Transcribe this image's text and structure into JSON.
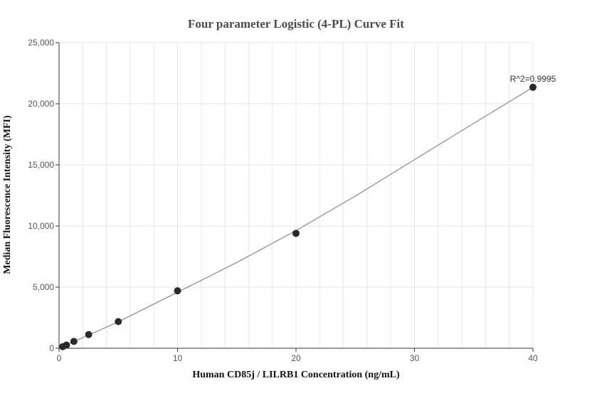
{
  "chart_data": {
    "type": "scatter",
    "title": "Four parameter Logistic (4-PL) Curve Fit",
    "xlabel": "Human CD85j / LILRB1 Concentration (ng/mL)",
    "ylabel": "Median Fluorescence Intensity (MFI)",
    "xlim": [
      0,
      40
    ],
    "ylim": [
      0,
      25000
    ],
    "x_ticks": [
      0,
      10,
      20,
      30,
      40
    ],
    "x_tick_labels": [
      "0",
      "10",
      "20",
      "30",
      "40"
    ],
    "y_ticks": [
      0,
      5000,
      10000,
      15000,
      20000,
      25000
    ],
    "y_tick_labels": [
      "0",
      "5,000",
      "10,000",
      "15,000",
      "20,000",
      "25,000"
    ],
    "grid": true,
    "points": {
      "x": [
        0.3125,
        0.625,
        1.25,
        2.5,
        5,
        10,
        20,
        40
      ],
      "y": [
        130,
        260,
        560,
        1120,
        2180,
        4700,
        9400,
        21350
      ]
    },
    "fit_curve": {
      "x": [
        0,
        5,
        10,
        15,
        20,
        25,
        30,
        35,
        40
      ],
      "y": [
        0,
        2160,
        4580,
        7020,
        9620,
        12450,
        15420,
        18400,
        21350
      ]
    },
    "annotation": "R^2=0.9995",
    "colors": {
      "points": "#2b2b2b",
      "curve": "#888888",
      "grid": "#e6e6ee",
      "axis": "#333333"
    }
  }
}
